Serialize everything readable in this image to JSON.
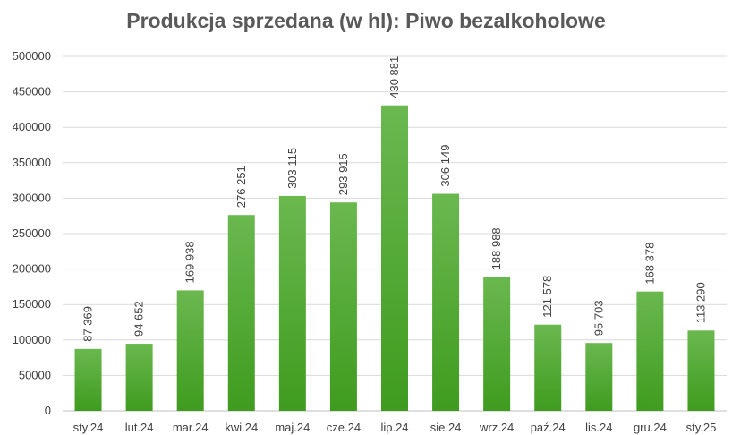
{
  "chart_data": {
    "type": "bar",
    "title": "Produkcja sprzedana (w hl): Piwo bezalkoholowe",
    "xlabel": "",
    "ylabel": "",
    "categories": [
      "sty.24",
      "lut.24",
      "mar.24",
      "kwi.24",
      "maj.24",
      "cze.24",
      "lip.24",
      "sie.24",
      "wrz.24",
      "paź.24",
      "lis.24",
      "gru.24",
      "sty.25"
    ],
    "values": [
      87369,
      94652,
      169938,
      276251,
      303115,
      293915,
      430881,
      306149,
      188988,
      121578,
      95703,
      168378,
      113290
    ],
    "data_labels": [
      "87 369",
      "94 652",
      "169 938",
      "276 251",
      "303 115",
      "293 915",
      "430 881",
      "306 149",
      "188 988",
      "121 578",
      "95 703",
      "168 378",
      "113 290"
    ],
    "ylim": [
      0,
      500000
    ],
    "yticks": [
      "0",
      "50000",
      "100000",
      "150000",
      "200000",
      "250000",
      "300000",
      "350000",
      "400000",
      "450000",
      "500000"
    ],
    "grid": true,
    "legend": "none",
    "colors": {
      "bar_top": "#6ab84f",
      "bar_bottom": "#3f9c1f",
      "text": "#404040",
      "title": "#595959",
      "grid": "#d9d9d9"
    }
  }
}
